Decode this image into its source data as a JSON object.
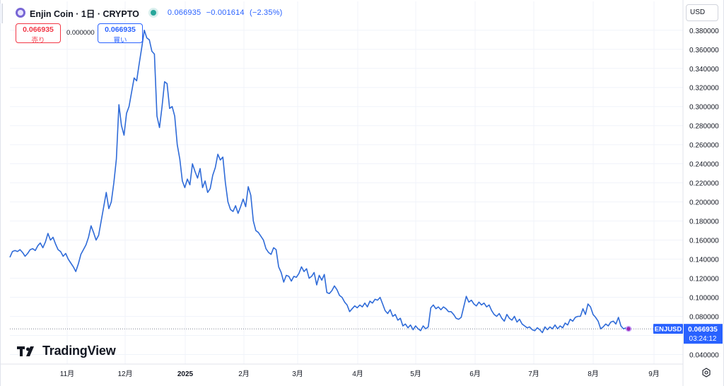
{
  "header": {
    "title": "Enjin Coin · 1日 · CRYPTO",
    "last": "0.066935",
    "change": "−0.001614",
    "change_pct": "(−2.35%)"
  },
  "trade": {
    "sell_price": "0.066935",
    "sell_label": "売り",
    "spread": "0.000000",
    "buy_price": "0.066935",
    "buy_label": "買い"
  },
  "currency_select": "USD",
  "watermark": "TradingView",
  "price_label": {
    "symbol": "ENJUSD",
    "price": "0.066935",
    "countdown": "03:24:12"
  },
  "colors": {
    "line": "#2f6bd8",
    "accent": "#2962ff",
    "sell": "#f23645",
    "live": "#26a69a",
    "last_point": "#9c27b0"
  },
  "icons": [
    "enjin-coin-icon",
    "live-status-icon",
    "tradingview-logo-icon",
    "settings-icon"
  ],
  "chart_data": {
    "type": "line",
    "x_unit": "daily",
    "x_ticks": [
      "11月",
      "12月",
      "2025",
      "2月",
      "3月",
      "4月",
      "5月",
      "6月",
      "7月",
      "8月",
      "9月"
    ],
    "y_ticks": [
      "0.040000",
      "0.060000",
      "0.080000",
      "0.100000",
      "0.120000",
      "0.140000",
      "0.160000",
      "0.180000",
      "0.200000",
      "0.220000",
      "0.240000",
      "0.260000",
      "0.280000",
      "0.300000",
      "0.320000",
      "0.340000",
      "0.360000",
      "0.380000"
    ],
    "ylim": [
      0.03,
      0.388
    ],
    "grid": true,
    "last_value": 0.066935,
    "series": [
      {
        "values": [
          0.142,
          0.148,
          0.149,
          0.148,
          0.15,
          0.147,
          0.143,
          0.146,
          0.15,
          0.151,
          0.149,
          0.154,
          0.157,
          0.152,
          0.158,
          0.167,
          0.16,
          0.163,
          0.156,
          0.15,
          0.148,
          0.143,
          0.146,
          0.14,
          0.136,
          0.132,
          0.127,
          0.135,
          0.145,
          0.15,
          0.155,
          0.163,
          0.175,
          0.168,
          0.16,
          0.165,
          0.18,
          0.195,
          0.21,
          0.193,
          0.2,
          0.22,
          0.245,
          0.302,
          0.28,
          0.27,
          0.293,
          0.3,
          0.315,
          0.33,
          0.327,
          0.345,
          0.362,
          0.38,
          0.372,
          0.37,
          0.358,
          0.355,
          0.29,
          0.278,
          0.3,
          0.326,
          0.324,
          0.298,
          0.3,
          0.29,
          0.26,
          0.245,
          0.222,
          0.215,
          0.224,
          0.218,
          0.24,
          0.232,
          0.225,
          0.235,
          0.215,
          0.222,
          0.21,
          0.214,
          0.228,
          0.236,
          0.25,
          0.244,
          0.247,
          0.22,
          0.2,
          0.192,
          0.19,
          0.196,
          0.188,
          0.195,
          0.203,
          0.195,
          0.216,
          0.207,
          0.18,
          0.17,
          0.168,
          0.164,
          0.16,
          0.151,
          0.147,
          0.145,
          0.152,
          0.15,
          0.132,
          0.126,
          0.116,
          0.123,
          0.122,
          0.117,
          0.122,
          0.121,
          0.125,
          0.132,
          0.127,
          0.13,
          0.12,
          0.122,
          0.126,
          0.113,
          0.123,
          0.118,
          0.124,
          0.105,
          0.104,
          0.107,
          0.112,
          0.108,
          0.102,
          0.1,
          0.095,
          0.092,
          0.085,
          0.088,
          0.091,
          0.089,
          0.092,
          0.09,
          0.094,
          0.09,
          0.096,
          0.094,
          0.098,
          0.097,
          0.1,
          0.093,
          0.086,
          0.083,
          0.087,
          0.08,
          0.082,
          0.076,
          0.078,
          0.07,
          0.072,
          0.068,
          0.071,
          0.066,
          0.07,
          0.067,
          0.065,
          0.07,
          0.067,
          0.069,
          0.089,
          0.092,
          0.088,
          0.09,
          0.087,
          0.09,
          0.088,
          0.085,
          0.085,
          0.082,
          0.078,
          0.077,
          0.079,
          0.09,
          0.101,
          0.095,
          0.097,
          0.093,
          0.091,
          0.095,
          0.092,
          0.094,
          0.09,
          0.092,
          0.086,
          0.082,
          0.08,
          0.083,
          0.078,
          0.075,
          0.082,
          0.078,
          0.076,
          0.08,
          0.074,
          0.077,
          0.072,
          0.07,
          0.068,
          0.069,
          0.066,
          0.065,
          0.068,
          0.066,
          0.063,
          0.069,
          0.066,
          0.069,
          0.067,
          0.071,
          0.067,
          0.07,
          0.068,
          0.073,
          0.071,
          0.077,
          0.075,
          0.079,
          0.08,
          0.08,
          0.088,
          0.082,
          0.093,
          0.09,
          0.082,
          0.079,
          0.075,
          0.067,
          0.069,
          0.072,
          0.07,
          0.074,
          0.075,
          0.072,
          0.079,
          0.07,
          0.067,
          0.068,
          0.066935
        ]
      }
    ]
  }
}
